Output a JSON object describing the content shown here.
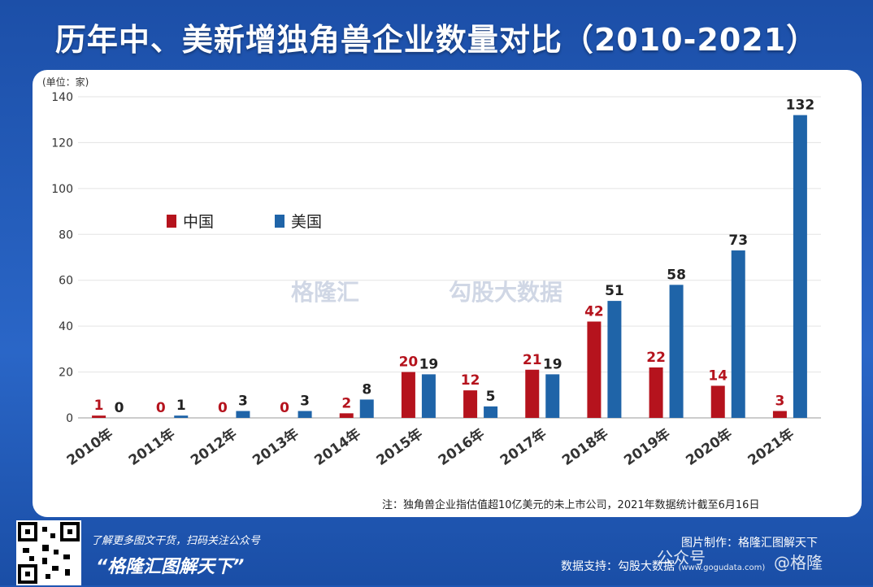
{
  "title": "历年中、美新增独角兽企业数量对比（2010-2021）",
  "unit_label": "(单位：家)",
  "note": "注：独角兽企业指估值超10亿美元的未上市公司，2021年数据统计截至6月16日",
  "watermark": {
    "brand": "格隆汇",
    "brand2": "勾股大数据"
  },
  "footer": {
    "promo": "了解更多图文干货，扫码关注公众号",
    "brand": "“格隆汇图解天下”",
    "maker": "图片制作：格隆汇图解天下",
    "support": "数据支持：勾股大数据",
    "support_url": "(www.gogudata.com)",
    "wm_left": "公众号",
    "wm_right": "@格隆"
  },
  "colors": {
    "china": "#b5131d",
    "usa": "#1f64a8",
    "grid": "#e3e3e3"
  },
  "chart_data": {
    "type": "bar",
    "categories": [
      "2010年",
      "2011年",
      "2012年",
      "2013年",
      "2014年",
      "2015年",
      "2016年",
      "2017年",
      "2018年",
      "2019年",
      "2020年",
      "2021年"
    ],
    "series": [
      {
        "name": "中国",
        "values": [
          1,
          0,
          0,
          0,
          2,
          20,
          12,
          21,
          42,
          22,
          14,
          3
        ]
      },
      {
        "name": "美国",
        "values": [
          0,
          1,
          3,
          3,
          8,
          19,
          5,
          19,
          51,
          58,
          73,
          132
        ]
      }
    ],
    "ylim": [
      0,
      140
    ],
    "yticks": [
      0,
      20,
      40,
      60,
      80,
      100,
      120,
      140
    ],
    "grid": true,
    "legend": "top-left"
  }
}
